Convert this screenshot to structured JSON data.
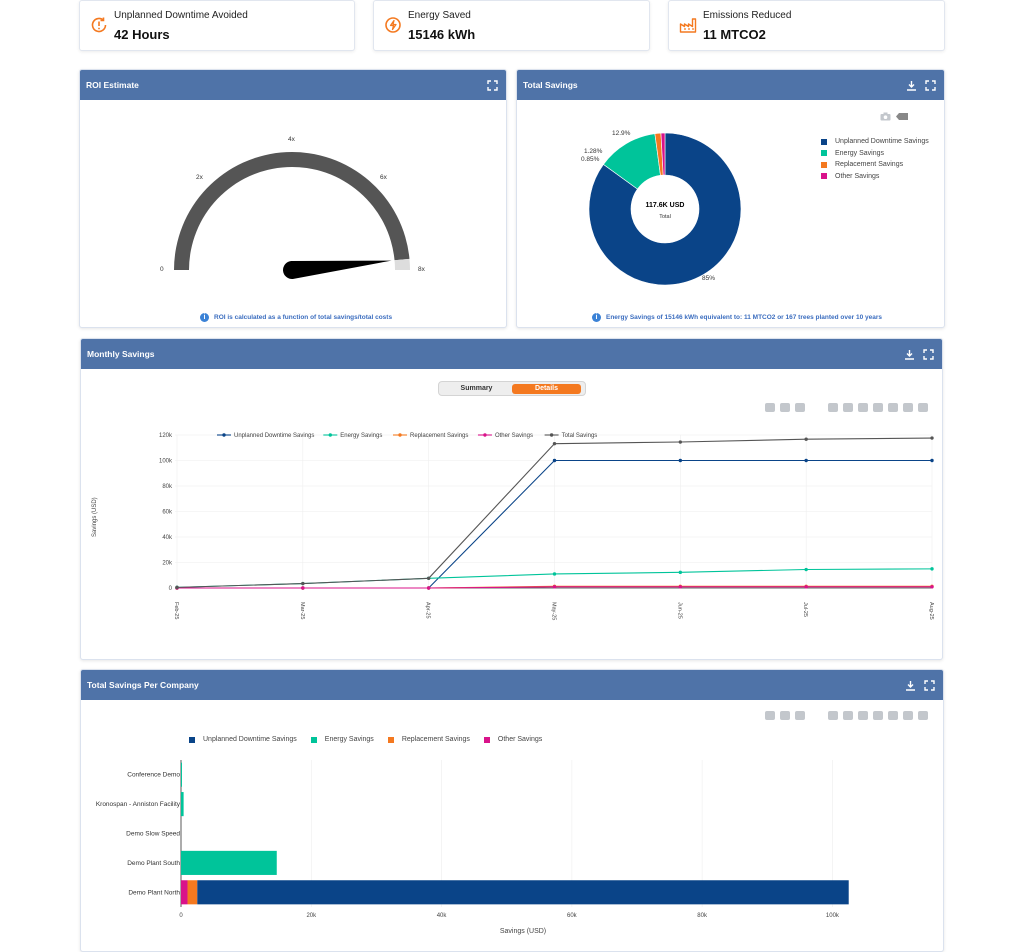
{
  "kpis": [
    {
      "label": "Unplanned Downtime Avoided",
      "value": "42 Hours",
      "icon": "clock-alert-icon"
    },
    {
      "label": "Energy Saved",
      "value": "15146 kWh",
      "icon": "energy-bolt-icon"
    },
    {
      "label": "Emissions Reduced",
      "value": "11 MTCO2",
      "icon": "factory-icon"
    }
  ],
  "colors": {
    "accent": "#f47920",
    "header": "#4f73a8",
    "downtime": "#0a4488",
    "energy": "#00c49a",
    "replacement": "#f47920",
    "other": "#d9138a",
    "total": "#555555"
  },
  "roi": {
    "title": "ROI Estimate",
    "ticks": [
      "0",
      "2x",
      "4x",
      "6x",
      "8x"
    ],
    "note": "ROI is calculated as a function of total savings/total costs",
    "value_fraction": 0.97
  },
  "total_savings": {
    "title": "Total Savings",
    "center_value": "117.6K  USD",
    "center_label": "Total",
    "slice_labels": [
      "85%",
      "12.9%",
      "1.28%",
      "0.85%"
    ],
    "legend": [
      "Unplanned Downtime Savings",
      "Energy Savings",
      "Replacement Savings",
      "Other Savings"
    ],
    "note": "Energy Savings of 15146 kWh equivalent to: 11 MTCO2 or 167 trees planted over 10 years"
  },
  "monthly": {
    "title": "Monthly Savings",
    "tabs": {
      "summary": "Summary",
      "details": "Details"
    },
    "legend": [
      "Unplanned Downtime Savings",
      "Energy Savings",
      "Replacement Savings",
      "Other Savings",
      "Total Savings"
    ],
    "ylabel": "Savings (USD)",
    "yticks": [
      "0",
      "20k",
      "40k",
      "60k",
      "80k",
      "100k",
      "120k"
    ],
    "xticks": [
      "Feb-25",
      "Mar-25",
      "Apr-25",
      "May-25",
      "Jun-25",
      "Jul-25",
      "Aug-25"
    ]
  },
  "company": {
    "title": "Total Savings Per Company",
    "legend": [
      "Unplanned Downtime Savings",
      "Energy Savings",
      "Replacement Savings",
      "Other Savings"
    ],
    "categories": [
      "Conference Demo",
      "Kronospan - Anniston Facility",
      "Demo Slow Speed",
      "Demo Plant South",
      "Demo Plant North"
    ],
    "xticks": [
      "0",
      "20k",
      "40k",
      "60k",
      "80k",
      "100k"
    ],
    "xlabel": "Savings (USD)"
  },
  "chart_data": [
    {
      "type": "pie",
      "title": "Total Savings",
      "categories": [
        "Unplanned Downtime Savings",
        "Energy Savings",
        "Replacement Savings",
        "Other Savings"
      ],
      "values": [
        85,
        12.9,
        1.28,
        0.85
      ],
      "unit": "%",
      "total": "117.6K USD"
    },
    {
      "type": "line",
      "title": "Monthly Savings",
      "x": [
        "Feb-25",
        "Mar-25",
        "Apr-25",
        "May-25",
        "Jun-25",
        "Jul-25",
        "Aug-25"
      ],
      "ylabel": "Savings (USD)",
      "ylim": [
        0,
        120000
      ],
      "series": [
        {
          "name": "Unplanned Downtime Savings",
          "values": [
            0,
            0,
            0,
            100000,
            100000,
            100000,
            100000
          ]
        },
        {
          "name": "Energy Savings",
          "values": [
            500,
            3500,
            7600,
            11000,
            12300,
            14500,
            15000
          ]
        },
        {
          "name": "Replacement Savings",
          "values": [
            0,
            0,
            0,
            1300,
            1300,
            1300,
            1300
          ]
        },
        {
          "name": "Other Savings",
          "values": [
            0,
            0,
            0,
            900,
            900,
            900,
            900
          ]
        },
        {
          "name": "Total Savings",
          "values": [
            500,
            3500,
            7600,
            113200,
            114500,
            116700,
            117600
          ]
        }
      ]
    },
    {
      "type": "bar",
      "orientation": "horizontal",
      "stacked": true,
      "title": "Total Savings Per Company",
      "categories": [
        "Conference Demo",
        "Kronospan - Anniston Facility",
        "Demo Slow Speed",
        "Demo Plant South",
        "Demo Plant North"
      ],
      "xlabel": "Savings (USD)",
      "xlim": [
        0,
        105000
      ],
      "series": [
        {
          "name": "Unplanned Downtime Savings",
          "values": [
            0,
            0,
            0,
            0,
            100000
          ]
        },
        {
          "name": "Energy Savings",
          "values": [
            150,
            400,
            0,
            14700,
            0
          ]
        },
        {
          "name": "Replacement Savings",
          "values": [
            0,
            0,
            0,
            0,
            1500
          ]
        },
        {
          "name": "Other Savings",
          "values": [
            0,
            0,
            0,
            0,
            1000
          ]
        }
      ]
    }
  ]
}
